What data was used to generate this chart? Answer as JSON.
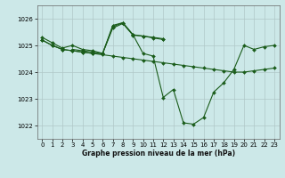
{
  "title": "Graphe pression niveau de la mer (hPa)",
  "background_color": "#cce8e8",
  "line_color": "#1a5c1a",
  "grid_color": "#b0c8c8",
  "xlim": [
    -0.5,
    23.5
  ],
  "ylim": [
    1021.5,
    1026.5
  ],
  "yticks": [
    1022,
    1023,
    1024,
    1025,
    1026
  ],
  "xticks": [
    0,
    1,
    2,
    3,
    4,
    5,
    6,
    7,
    8,
    9,
    10,
    11,
    12,
    13,
    14,
    15,
    16,
    17,
    18,
    19,
    20,
    21,
    22,
    23
  ],
  "series": [
    {
      "x": [
        0,
        1,
        2,
        3,
        4,
        5,
        6,
        7,
        8,
        9,
        10,
        11,
        12,
        13,
        14,
        15,
        16,
        17,
        18,
        19,
        20,
        21,
        22,
        23
      ],
      "y": [
        1025.2,
        1025.0,
        1024.85,
        1024.8,
        1024.75,
        1024.7,
        1024.65,
        1024.6,
        1024.55,
        1024.5,
        1024.45,
        1024.4,
        1024.35,
        1024.3,
        1024.25,
        1024.2,
        1024.15,
        1024.1,
        1024.05,
        1024.0,
        1024.0,
        1024.05,
        1024.1,
        1024.15
      ]
    },
    {
      "x": [
        0,
        1,
        2,
        3,
        4,
        5,
        6,
        7,
        8,
        9,
        10,
        11,
        12
      ],
      "y": [
        1025.2,
        1025.0,
        1024.85,
        1024.8,
        1024.75,
        1024.7,
        1024.7,
        1025.75,
        1025.85,
        1025.4,
        1025.35,
        1025.3,
        1025.25
      ]
    },
    {
      "x": [
        0,
        1,
        2,
        3,
        4,
        5,
        6,
        7,
        8,
        9,
        10,
        11,
        12,
        13,
        14,
        15,
        16,
        17,
        18,
        19,
        20,
        21,
        22,
        23
      ],
      "y": [
        1025.3,
        1025.1,
        1024.9,
        1025.0,
        1024.85,
        1024.8,
        1024.7,
        1025.7,
        1025.85,
        1025.4,
        1024.7,
        1024.6,
        1023.05,
        1023.35,
        1022.1,
        1022.05,
        1022.3,
        1023.25,
        1023.6,
        1024.1,
        1025.0,
        1024.85,
        1024.95,
        1025.0
      ]
    },
    {
      "x": [
        3,
        4,
        5,
        6,
        7,
        8,
        9,
        10,
        11,
        12
      ],
      "y": [
        1024.85,
        1024.8,
        1024.75,
        1024.7,
        1025.65,
        1025.82,
        1025.38,
        1025.35,
        1025.28,
        1025.22
      ]
    }
  ]
}
